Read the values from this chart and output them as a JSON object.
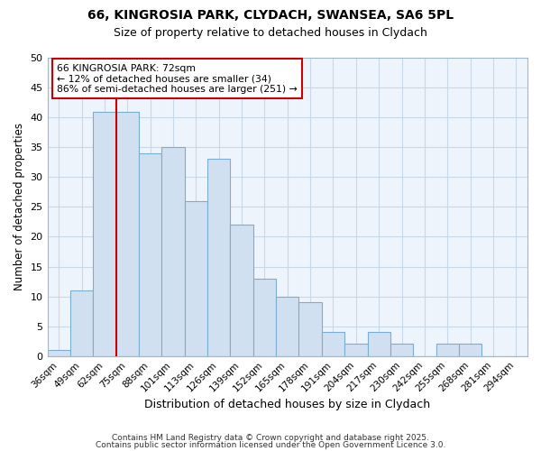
{
  "title1": "66, KINGROSIA PARK, CLYDACH, SWANSEA, SA6 5PL",
  "title2": "Size of property relative to detached houses in Clydach",
  "xlabel": "Distribution of detached houses by size in Clydach",
  "ylabel": "Number of detached properties",
  "categories": [
    "36sqm",
    "49sqm",
    "62sqm",
    "75sqm",
    "88sqm",
    "101sqm",
    "113sqm",
    "126sqm",
    "139sqm",
    "152sqm",
    "165sqm",
    "178sqm",
    "191sqm",
    "204sqm",
    "217sqm",
    "230sqm",
    "242sqm",
    "255sqm",
    "268sqm",
    "281sqm",
    "294sqm"
  ],
  "values": [
    1,
    11,
    41,
    41,
    34,
    35,
    26,
    33,
    22,
    13,
    10,
    9,
    4,
    2,
    4,
    2,
    0,
    2,
    2,
    0,
    0
  ],
  "bar_color": "#d0e0f0",
  "bar_edge_color": "#7aaed0",
  "grid_color": "#c8d8e8",
  "background_color": "#ffffff",
  "plot_bg_color": "#eef4fc",
  "annotation_box_text": "66 KINGROSIA PARK: 72sqm\n← 12% of detached houses are smaller (34)\n86% of semi-detached houses are larger (251) →",
  "annotation_box_color": "#ffffff",
  "annotation_box_edge": "#cc0000",
  "vline_color": "#cc0000",
  "ylim": [
    0,
    50
  ],
  "yticks": [
    0,
    5,
    10,
    15,
    20,
    25,
    30,
    35,
    40,
    45,
    50
  ],
  "footer1": "Contains HM Land Registry data © Crown copyright and database right 2025.",
  "footer2": "Contains public sector information licensed under the Open Government Licence 3.0."
}
